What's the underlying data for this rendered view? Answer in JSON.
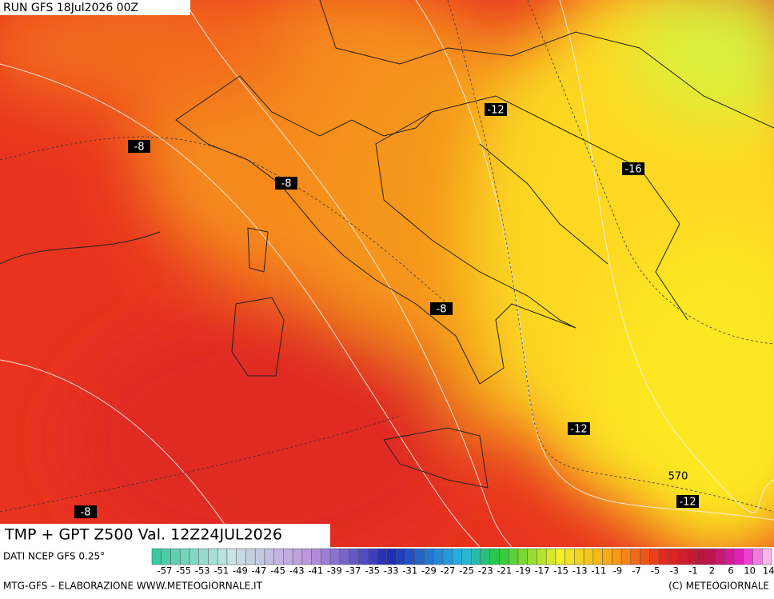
{
  "header": {
    "run": "RUN GFS 18Jul2026 00Z"
  },
  "map": {
    "contour_labels": [
      "-8",
      "-8",
      "-8",
      "-8",
      "-12",
      "-12",
      "-12",
      "-16",
      "570"
    ]
  },
  "title": "TMP + GPT Z500 Val. 12Z24JUL2026",
  "source": "DATI NCEP GFS 0.25°",
  "colorbar": {
    "labels": [
      "-57",
      "-55",
      "-53",
      "-51",
      "-49",
      "-47",
      "-45",
      "-43",
      "-41",
      "-39",
      "-37",
      "-35",
      "-33",
      "-31",
      "-29",
      "-27",
      "-25",
      "-23",
      "-21",
      "-19",
      "-17",
      "-15",
      "-13",
      "-11",
      "-9",
      "-7",
      "-5",
      "-3",
      "-1",
      "2",
      "6",
      "10",
      "14"
    ]
  },
  "footer": {
    "left": "MTG-GFS – ELABORAZIONE WWW.METEOGIORNALE.IT",
    "right": "(C) METEOGIORNALE"
  }
}
